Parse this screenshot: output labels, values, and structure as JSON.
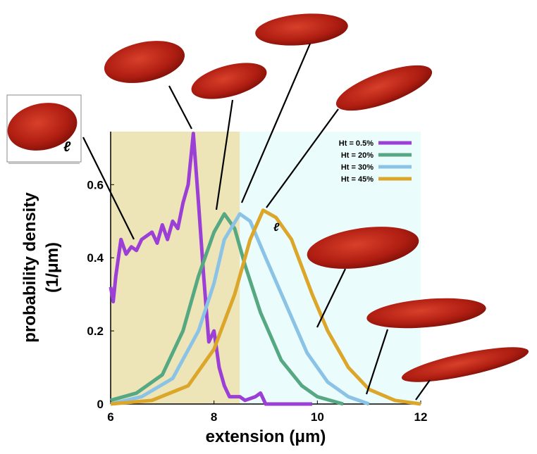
{
  "chart_data": {
    "type": "line",
    "xlabel": "extension (μm)",
    "ylabel": [
      "probability density",
      "(1/μm)"
    ],
    "xlim": [
      6,
      12
    ],
    "ylim": [
      0,
      0.745
    ],
    "xticks": [
      6,
      8,
      10,
      12
    ],
    "yticks": [
      0,
      0.2,
      0.4,
      0.6
    ],
    "shaded_regions": [
      {
        "from": 6,
        "to": 8.5,
        "color": "#ede5b8"
      },
      {
        "from": 8.5,
        "to": 12,
        "color": "#eafcfc"
      }
    ],
    "legend": "upper right",
    "annotations": [
      "ℓ",
      "ℓ"
    ],
    "series": [
      {
        "name": "Ht = 0.5%",
        "color": "#9b3fd6",
        "x": [
          6,
          6.05,
          6.1,
          6.2,
          6.3,
          6.4,
          6.5,
          6.6,
          6.8,
          6.9,
          7.0,
          7.1,
          7.2,
          7.3,
          7.4,
          7.5,
          7.6,
          7.7,
          7.8,
          7.9,
          8.0,
          8.1,
          8.2,
          8.3,
          8.5,
          8.6,
          8.8,
          8.9,
          9.0,
          9.9
        ],
        "values": [
          0.32,
          0.28,
          0.35,
          0.45,
          0.41,
          0.43,
          0.42,
          0.45,
          0.47,
          0.44,
          0.49,
          0.45,
          0.5,
          0.48,
          0.55,
          0.6,
          0.74,
          0.55,
          0.35,
          0.17,
          0.2,
          0.1,
          0.05,
          0.02,
          0.02,
          0.01,
          0.02,
          0.03,
          0,
          0
        ]
      },
      {
        "name": "Ht = 20%",
        "color": "#56a882",
        "x": [
          6,
          6.5,
          7.0,
          7.4,
          7.7,
          8.0,
          8.2,
          8.4,
          8.6,
          8.9,
          9.3,
          9.7,
          10.0,
          10.5
        ],
        "values": [
          0.01,
          0.03,
          0.08,
          0.2,
          0.35,
          0.47,
          0.52,
          0.48,
          0.38,
          0.25,
          0.12,
          0.05,
          0.02,
          0
        ]
      },
      {
        "name": "Ht = 30%",
        "color": "#8ac3e6",
        "x": [
          6,
          6.6,
          7.2,
          7.7,
          8.0,
          8.2,
          8.5,
          8.7,
          9.0,
          9.4,
          9.8,
          10.2,
          10.6,
          11.0
        ],
        "values": [
          0,
          0.02,
          0.07,
          0.2,
          0.33,
          0.45,
          0.52,
          0.5,
          0.4,
          0.27,
          0.14,
          0.06,
          0.02,
          0
        ]
      },
      {
        "name": "Ht = 45%",
        "color": "#dba62a",
        "x": [
          6,
          6.8,
          7.5,
          8.0,
          8.4,
          8.7,
          8.95,
          9.2,
          9.5,
          9.9,
          10.2,
          10.6,
          11.0,
          11.5,
          12
        ],
        "values": [
          0,
          0.01,
          0.05,
          0.15,
          0.3,
          0.45,
          0.53,
          0.51,
          0.45,
          0.3,
          0.2,
          0.1,
          0.04,
          0.01,
          0
        ]
      }
    ]
  }
}
